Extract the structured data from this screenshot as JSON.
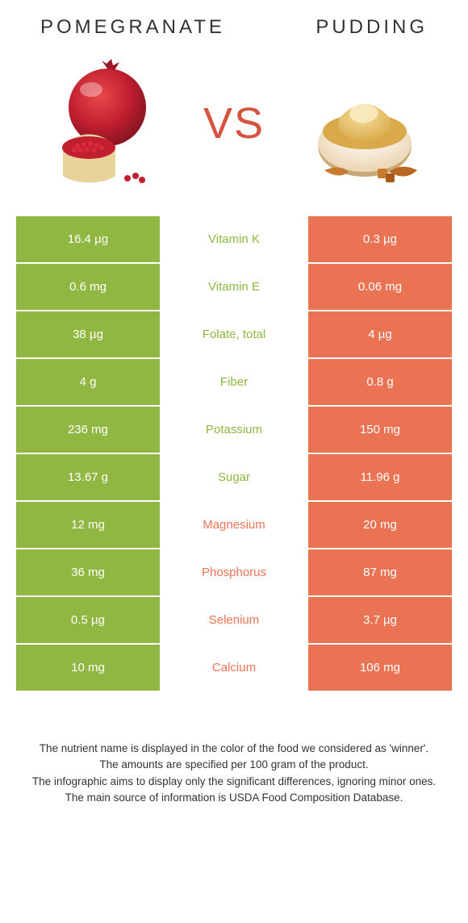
{
  "colors": {
    "green": "#8fb741",
    "orange": "#ea7354",
    "vs": "#d5543f"
  },
  "header": {
    "left": "POMEGRANATE",
    "right": "PUDDING"
  },
  "vs": "VS",
  "rows": [
    {
      "left": "16.4 µg",
      "mid": "Vitamin K",
      "right": "0.3 µg",
      "winner": "left"
    },
    {
      "left": "0.6 mg",
      "mid": "Vitamin E",
      "right": "0.06 mg",
      "winner": "left"
    },
    {
      "left": "38 µg",
      "mid": "Folate, total",
      "right": "4 µg",
      "winner": "left"
    },
    {
      "left": "4 g",
      "mid": "Fiber",
      "right": "0.8 g",
      "winner": "left"
    },
    {
      "left": "236 mg",
      "mid": "Potassium",
      "right": "150 mg",
      "winner": "left"
    },
    {
      "left": "13.67 g",
      "mid": "Sugar",
      "right": "11.96 g",
      "winner": "left"
    },
    {
      "left": "12 mg",
      "mid": "Magnesium",
      "right": "20 mg",
      "winner": "right"
    },
    {
      "left": "36 mg",
      "mid": "Phosphorus",
      "right": "87 mg",
      "winner": "right"
    },
    {
      "left": "0.5 µg",
      "mid": "Selenium",
      "right": "3.7 µg",
      "winner": "right"
    },
    {
      "left": "10 mg",
      "mid": "Calcium",
      "right": "106 mg",
      "winner": "right"
    }
  ],
  "footer": {
    "line1": "The nutrient name is displayed in the color of the food we considered as 'winner'.",
    "line2": "The amounts are specified per 100 gram of the product.",
    "line3": "The infographic aims to display only the significant differences, ignoring minor ones.",
    "line4": "The main source of information is USDA Food Composition Database."
  }
}
